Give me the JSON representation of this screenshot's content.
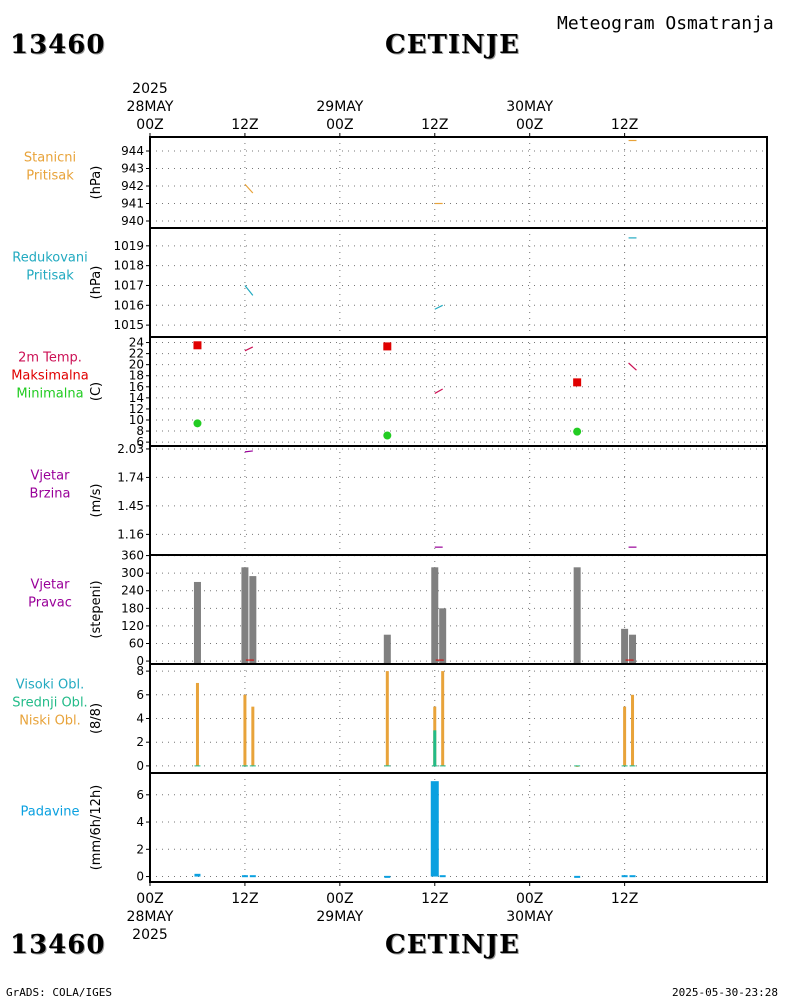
{
  "header": {
    "station_id": "13460",
    "station_name": "CETINJE",
    "meteogram_title": "Meteogram Osmatranja"
  },
  "footer": {
    "credit": "GrADS: COLA/IGES",
    "timestamp": "2025-05-30-23:28"
  },
  "colors": {
    "pressure_station": "#e8a33a",
    "pressure_reduced": "#22aac0",
    "temp_max": "#e00000",
    "temp_min": "#22cc22",
    "temp_trace": "#cc1155",
    "wind": "#990099",
    "wind_dir_bar": "#808080",
    "cloud_high": "#22aac0",
    "cloud_mid": "#22bb88",
    "cloud_low": "#e8a33a",
    "precip": "#0aa0e0"
  },
  "chart_data": {
    "type": "meteogram",
    "time_axis": {
      "start": "2025-05-28 00Z",
      "end": "2025-05-31 06Z",
      "range_hours": [
        0,
        78
      ],
      "year_label": "2025",
      "ticks": [
        {
          "hour": 0,
          "label": "00Z",
          "date": "28MAY",
          "year": "2025"
        },
        {
          "hour": 12,
          "label": "12Z",
          "date": "",
          "year": ""
        },
        {
          "hour": 24,
          "label": "00Z",
          "date": "29MAY",
          "year": ""
        },
        {
          "hour": 36,
          "label": "12Z",
          "date": "",
          "year": ""
        },
        {
          "hour": 48,
          "label": "00Z",
          "date": "30MAY",
          "year": ""
        },
        {
          "hour": 60,
          "label": "12Z",
          "date": "",
          "year": ""
        }
      ]
    },
    "panels": [
      {
        "id": "station_pressure",
        "titles": [
          "Stanicni",
          "Pritisak"
        ],
        "title_colors": [
          "pressure_station",
          "pressure_station"
        ],
        "ylabel": "(hPa)",
        "ylim": [
          939.6,
          944.8
        ],
        "yticks": [
          940,
          941,
          942,
          943,
          944
        ],
        "segments": [
          {
            "x": [
              12,
              13
            ],
            "y": [
              942.1,
              941.6
            ],
            "color": "pressure_station"
          },
          {
            "x": [
              36,
              37
            ],
            "y": [
              941.0,
              941.0
            ],
            "color": "pressure_station"
          },
          {
            "x": [
              60.5,
              61.5
            ],
            "y": [
              944.6,
              944.6
            ],
            "color": "pressure_station"
          }
        ]
      },
      {
        "id": "reduced_pressure",
        "titles": [
          "Redukovani",
          "Pritisak"
        ],
        "title_colors": [
          "pressure_reduced",
          "pressure_reduced"
        ],
        "ylabel": "(hPa)",
        "ylim": [
          1014.4,
          1019.9
        ],
        "yticks": [
          1015,
          1016,
          1017,
          1018,
          1019
        ],
        "segments": [
          {
            "x": [
              12,
              13
            ],
            "y": [
              1017.0,
              1016.5
            ],
            "color": "pressure_reduced"
          },
          {
            "x": [
              36,
              37
            ],
            "y": [
              1015.8,
              1016.0
            ],
            "color": "pressure_reduced"
          },
          {
            "x": [
              60.5,
              61.5
            ],
            "y": [
              1019.4,
              1019.4
            ],
            "color": "pressure_reduced"
          }
        ]
      },
      {
        "id": "temperature",
        "titles": [
          "2m Temp.",
          "Maksimalna",
          "Minimalna"
        ],
        "title_colors": [
          "temp_trace",
          "temp_max",
          "temp_min"
        ],
        "ylabel": "(C)",
        "ylim": [
          5.3,
          25
        ],
        "yticks": [
          6,
          8,
          10,
          12,
          14,
          16,
          18,
          20,
          22,
          24
        ],
        "segments": [
          {
            "x": [
              12,
              13
            ],
            "y": [
              22.5,
              23.2
            ],
            "color": "temp_trace"
          },
          {
            "x": [
              36,
              37
            ],
            "y": [
              14.8,
              15.6
            ],
            "color": "temp_trace"
          },
          {
            "x": [
              60.5,
              61.5
            ],
            "y": [
              20.3,
              19.0
            ],
            "color": "temp_trace"
          }
        ],
        "max_points": [
          {
            "x": 6,
            "y": 23.5
          },
          {
            "x": 30,
            "y": 23.3
          },
          {
            "x": 54,
            "y": 16.8
          }
        ],
        "min_points": [
          {
            "x": 6,
            "y": 9.4
          },
          {
            "x": 30,
            "y": 7.2
          },
          {
            "x": 54,
            "y": 7.9
          }
        ]
      },
      {
        "id": "wind_speed",
        "titles": [
          "Vjetar",
          "Brzina"
        ],
        "title_colors": [
          "wind",
          "wind"
        ],
        "ylabel": "(m/s)",
        "ylim": [
          0.95,
          2.06
        ],
        "yticks": [
          1.16,
          1.45,
          1.74,
          2.03
        ],
        "segments": [
          {
            "x": [
              12,
              13
            ],
            "y": [
              2.0,
              2.01
            ],
            "color": "wind"
          },
          {
            "x": [
              36,
              37
            ],
            "y": [
              1.03,
              1.03
            ],
            "color": "wind"
          },
          {
            "x": [
              60.5,
              61.5
            ],
            "y": [
              1.03,
              1.03
            ],
            "color": "wind"
          }
        ]
      },
      {
        "id": "wind_direction",
        "titles": [
          "Vjetar",
          "Pravac"
        ],
        "title_colors": [
          "wind",
          "wind"
        ],
        "ylabel": "(stepeni)",
        "ylim": [
          -10,
          362
        ],
        "yticks": [
          0,
          60,
          120,
          180,
          240,
          300,
          360
        ],
        "ytick_labels": [
          "0",
          "60",
          "120",
          "180",
          "240",
          "300",
          "360"
        ],
        "bars": [
          {
            "x": 6,
            "value": 270
          },
          {
            "x": 12,
            "value": 320
          },
          {
            "x": 13,
            "value": 290
          },
          {
            "x": 30,
            "value": 90
          },
          {
            "x": 36,
            "value": 320
          },
          {
            "x": 37,
            "value": 180
          },
          {
            "x": 54,
            "value": 320
          },
          {
            "x": 60,
            "value": 110
          },
          {
            "x": 61,
            "value": 90
          }
        ]
      },
      {
        "id": "cloud_cover",
        "titles": [
          "Visoki Obl.",
          "Srednji Obl.",
          "Niski Obl."
        ],
        "title_colors": [
          "cloud_high",
          "cloud_mid",
          "cloud_low"
        ],
        "ylabel": "(8/8)",
        "ylim": [
          -0.6,
          8.6
        ],
        "yticks": [
          0,
          2,
          4,
          6,
          8
        ],
        "series": [
          {
            "name": "Niski Obl.",
            "color": "cloud_low",
            "bars": [
              {
                "x": 6,
                "value": 7
              },
              {
                "x": 12,
                "value": 6
              },
              {
                "x": 13,
                "value": 5
              },
              {
                "x": 30,
                "value": 8
              },
              {
                "x": 36,
                "value": 5
              },
              {
                "x": 37,
                "value": 8
              },
              {
                "x": 54,
                "value": 0
              },
              {
                "x": 60,
                "value": 5
              },
              {
                "x": 61,
                "value": 6
              }
            ]
          },
          {
            "name": "Srednji Obl.",
            "color": "cloud_mid",
            "bars": [
              {
                "x": 36,
                "value": 3
              }
            ]
          },
          {
            "name": "Visoki Obl.",
            "color": "cloud_high",
            "bars": []
          }
        ]
      },
      {
        "id": "precipitation",
        "titles": [
          "Padavine"
        ],
        "title_colors": [
          "precip"
        ],
        "ylabel": "(mm/6h/12h)",
        "ylim": [
          -0.4,
          7.6
        ],
        "yticks": [
          0,
          2,
          4,
          6
        ],
        "bars": [
          {
            "x": 6,
            "value": 0.2
          },
          {
            "x": 12,
            "value": 0.1
          },
          {
            "x": 13,
            "value": 0.1
          },
          {
            "x": 30,
            "value": 0.05
          },
          {
            "x": 36,
            "value": 7.0
          },
          {
            "x": 37,
            "value": 0.1
          },
          {
            "x": 54,
            "value": 0.05
          },
          {
            "x": 60,
            "value": 0.1
          },
          {
            "x": 61,
            "value": 0.1
          }
        ]
      }
    ]
  }
}
